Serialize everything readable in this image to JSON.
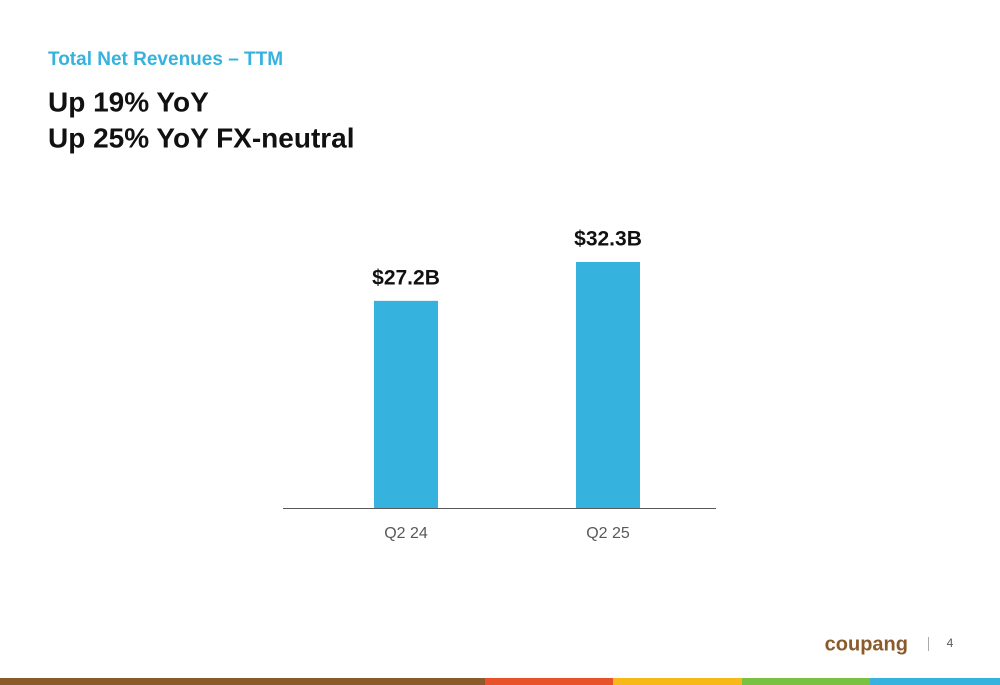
{
  "chart_data": {
    "type": "bar",
    "subtitle": "Total Net Revenues – TTM",
    "title": [
      "Up 19% YoY",
      "Up 25% YoY FX-neutral"
    ],
    "categories": [
      "Q2 24",
      "Q2 25"
    ],
    "values": [
      27.2,
      32.3
    ],
    "value_labels": [
      "$27.2B",
      "$32.3B"
    ],
    "color": "#35b3de"
  },
  "footer": {
    "logo": "coupang",
    "page_number": "4"
  }
}
